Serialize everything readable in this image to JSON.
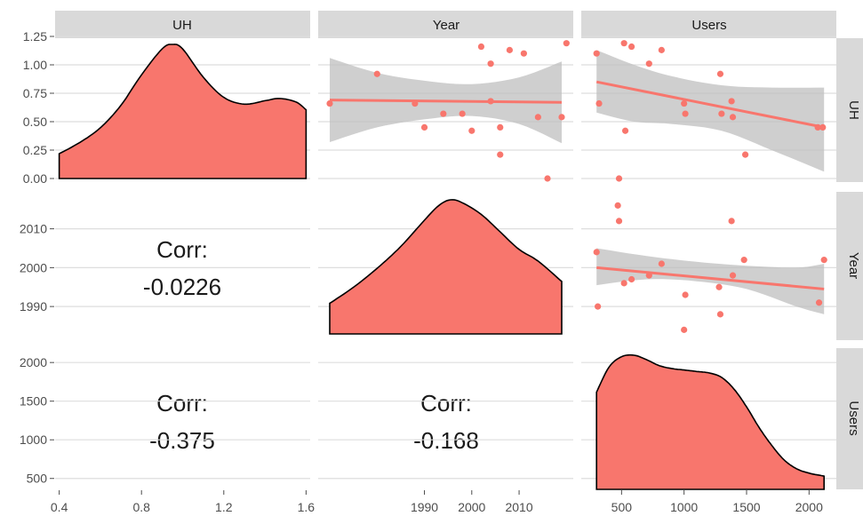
{
  "chart_data": {
    "type": "scatter",
    "variables": [
      "UH",
      "Year",
      "Users"
    ],
    "strip_labels": {
      "top": [
        "UH",
        "Year",
        "Users"
      ],
      "right": [
        "UH",
        "Year",
        "Users"
      ]
    },
    "axes": {
      "UH": {
        "range": [
          0,
          1.25
        ],
        "ticks": [
          0,
          0.25,
          0.5,
          0.75,
          1.0,
          1.25
        ],
        "tick_labels": [
          "0.00",
          "0.25",
          "0.50",
          "0.75",
          "1.00",
          "1.25"
        ]
      },
      "Year": {
        "range": [
          1970,
          2019
        ],
        "ticks": [
          1990,
          2000,
          2010
        ],
        "tick_labels": [
          "1990",
          "2000",
          "2010"
        ]
      },
      "Users": {
        "range": [
          270,
          2140
        ],
        "ticks": [
          500,
          1000,
          1500,
          2000
        ],
        "tick_labels": [
          "500",
          "1000",
          "1500",
          "2000"
        ]
      },
      "UH_x": {
        "range": [
          0.38,
          1.62
        ],
        "ticks": [
          0.4,
          0.8,
          1.2,
          1.6
        ],
        "tick_labels": [
          "0.4",
          "0.8",
          "1.2",
          "1.6"
        ]
      },
      "Year_y_panel": {
        "range": [
          1985,
          2017
        ],
        "ticks": [
          1990,
          2000,
          2010
        ],
        "tick_labels": [
          "1990",
          "2000",
          "2010"
        ]
      },
      "Users_y_panel": {
        "range": [
          290,
          2140
        ],
        "ticks": [
          500,
          1000,
          1500,
          2000
        ],
        "tick_labels": [
          "500",
          "1000",
          "1500",
          "2000"
        ]
      }
    },
    "correlations": [
      {
        "row": "Year",
        "col": "UH",
        "label": "Corr:",
        "value": "-0.0226"
      },
      {
        "row": "Users",
        "col": "UH",
        "label": "Corr:",
        "value": "-0.375"
      },
      {
        "row": "Users",
        "col": "Year",
        "label": "Corr:",
        "value": "-0.168"
      }
    ],
    "densities": {
      "UH": {
        "x": [
          0.4,
          0.5,
          0.6,
          0.7,
          0.8,
          0.9,
          0.95,
          1.0,
          1.1,
          1.2,
          1.3,
          1.4,
          1.47,
          1.55,
          1.6
        ],
        "y": [
          0.22,
          0.32,
          0.45,
          0.65,
          0.92,
          1.15,
          1.19,
          1.15,
          0.9,
          0.72,
          0.66,
          0.69,
          0.71,
          0.68,
          0.61
        ]
      },
      "Year": {
        "x": [
          1970,
          1975,
          1980,
          1985,
          1990,
          1993,
          1995.5,
          1998,
          2002,
          2006,
          2010,
          2014,
          2019
        ],
        "y": [
          0.21,
          0.32,
          0.45,
          0.6,
          0.78,
          0.88,
          0.92,
          0.9,
          0.82,
          0.7,
          0.58,
          0.5,
          0.36
        ]
      },
      "Users": {
        "x": [
          300,
          400,
          500,
          600,
          700,
          800,
          900,
          1000,
          1100,
          1200,
          1300,
          1400,
          1500,
          1600,
          1700,
          1800,
          1900,
          2000,
          2120
        ],
        "y": [
          0.66,
          0.83,
          0.9,
          0.91,
          0.88,
          0.84,
          0.82,
          0.81,
          0.8,
          0.79,
          0.76,
          0.68,
          0.56,
          0.42,
          0.3,
          0.2,
          0.14,
          0.11,
          0.09
        ]
      }
    },
    "scatter": {
      "Year_vs_UH": [
        [
          1970,
          0.66
        ],
        [
          1980,
          0.92
        ],
        [
          1988,
          0.66
        ],
        [
          1990,
          0.45
        ],
        [
          1994,
          0.57
        ],
        [
          1998,
          0.57
        ],
        [
          2000,
          0.42
        ],
        [
          2002,
          1.16
        ],
        [
          2004,
          1.01
        ],
        [
          2004,
          0.68
        ],
        [
          2006,
          0.45
        ],
        [
          2006,
          0.21
        ],
        [
          2008,
          1.13
        ],
        [
          2011,
          1.1
        ],
        [
          2014,
          0.54
        ],
        [
          2016,
          0.0
        ],
        [
          2019,
          0.54
        ],
        [
          2020,
          1.19
        ]
      ],
      "Users_vs_UH": [
        [
          300,
          1.1
        ],
        [
          320,
          0.66
        ],
        [
          480,
          0.0
        ],
        [
          520,
          1.19
        ],
        [
          530,
          0.42
        ],
        [
          580,
          1.16
        ],
        [
          720,
          1.01
        ],
        [
          820,
          1.13
        ],
        [
          1000,
          0.66
        ],
        [
          1010,
          0.57
        ],
        [
          1290,
          0.92
        ],
        [
          1300,
          0.57
        ],
        [
          1380,
          0.68
        ],
        [
          1390,
          0.54
        ],
        [
          1490,
          0.21
        ],
        [
          2070,
          0.45
        ],
        [
          2110,
          0.45
        ]
      ],
      "Users_vs_Year": [
        [
          300,
          2004
        ],
        [
          310,
          1990
        ],
        [
          470,
          2016
        ],
        [
          480,
          2012
        ],
        [
          520,
          1996
        ],
        [
          580,
          1997
        ],
        [
          720,
          1998
        ],
        [
          820,
          2001
        ],
        [
          1000,
          1984
        ],
        [
          1010,
          1993
        ],
        [
          1280,
          1995
        ],
        [
          1290,
          1988
        ],
        [
          1380,
          2012
        ],
        [
          1390,
          1998
        ],
        [
          1480,
          2002
        ],
        [
          2080,
          1991
        ],
        [
          2120,
          2002
        ]
      ]
    },
    "fits": {
      "Year_vs_UH": {
        "x": [
          1970,
          2019
        ],
        "y": [
          0.69,
          0.67
        ],
        "band_x": [
          1970,
          1980,
          1990,
          2000,
          2010,
          2019
        ],
        "band_lo": [
          0.32,
          0.45,
          0.52,
          0.55,
          0.48,
          0.31
        ],
        "band_hi": [
          1.06,
          0.93,
          0.86,
          0.83,
          0.89,
          1.03
        ]
      },
      "Users_vs_UH": {
        "x": [
          300,
          2120
        ],
        "y": [
          0.85,
          0.45
        ],
        "band_lo": [
          0.58,
          0.5,
          0.48,
          0.42,
          0.25,
          0.06
        ],
        "band_hi": [
          1.13,
          1.0,
          0.9,
          0.82,
          0.8,
          0.8
        ],
        "band_x": [
          300,
          600,
          900,
          1300,
          1700,
          2120
        ]
      },
      "Users_vs_Year": {
        "x": [
          300,
          2120
        ],
        "y": [
          2000,
          1994.5
        ],
        "band_x": [
          300,
          700,
          1100,
          1500,
          1900,
          2120
        ],
        "band_lo": [
          1995.5,
          1997,
          1996.5,
          1994.5,
          1990,
          1988
        ],
        "band_hi": [
          2005,
          2003,
          2001.5,
          2000.5,
          2000,
          2001
        ]
      }
    }
  }
}
